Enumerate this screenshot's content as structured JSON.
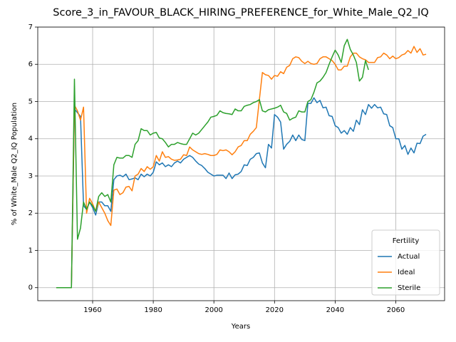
{
  "chart_data": {
    "type": "line",
    "title": "Score_3_in_FAVOUR_BLACK_HIRING_PREFERENCE_for_White_Male_Q2_IQ",
    "xlabel": "Years",
    "ylabel": "% of White_Male Q2_IQ Population",
    "x": [
      1948,
      1949,
      1950,
      1951,
      1952,
      1953,
      1954,
      1955,
      1956,
      1957,
      1958,
      1959,
      1960,
      1961,
      1962,
      1963,
      1964,
      1965,
      1966,
      1967,
      1968,
      1969,
      1970,
      1971,
      1972,
      1973,
      1974,
      1975,
      1976,
      1977,
      1978,
      1979,
      1980,
      1981,
      1982,
      1983,
      1984,
      1985,
      1986,
      1987,
      1988,
      1989,
      1990,
      1991,
      1992,
      1993,
      1994,
      1995,
      1996,
      1997,
      1998,
      1999,
      2000,
      2001,
      2002,
      2003,
      2004,
      2005,
      2006,
      2007,
      2008,
      2009,
      2010,
      2011,
      2012,
      2013,
      2014,
      2015,
      2016,
      2017,
      2018,
      2019,
      2020,
      2021,
      2022,
      2023,
      2024,
      2025,
      2026,
      2027,
      2028,
      2029,
      2030,
      2031,
      2032,
      2033,
      2034,
      2035,
      2036,
      2037,
      2038,
      2039,
      2040,
      2041,
      2042,
      2043,
      2044,
      2045,
      2046,
      2047,
      2048,
      2049,
      2050,
      2051,
      2052,
      2053,
      2054,
      2055,
      2056,
      2057,
      2058,
      2059,
      2060,
      2061,
      2062,
      2063,
      2064,
      2065,
      2066,
      2067,
      2068,
      2069,
      2070
    ],
    "series": [
      {
        "name": "Actual",
        "color": "#1f77b4",
        "values": [
          0,
          0,
          0,
          0,
          0,
          0,
          4.8,
          4.7,
          4.6,
          2.2,
          2.1,
          2.3,
          2.15,
          1.95,
          2.3,
          2.3,
          2.2,
          2.2,
          2.05,
          2.9,
          3.0,
          3.02,
          2.98,
          3.05,
          2.9,
          2.92,
          2.95,
          2.9,
          3.05,
          2.98,
          3.05,
          3.0,
          3.1,
          3.38,
          3.3,
          3.35,
          3.25,
          3.3,
          3.25,
          3.35,
          3.4,
          3.35,
          3.45,
          3.5,
          3.55,
          3.5,
          3.4,
          3.32,
          3.28,
          3.2,
          3.1,
          3.05,
          3.0,
          3.02,
          3.02,
          3.02,
          2.93,
          3.08,
          2.93,
          3.03,
          3.05,
          3.12,
          3.3,
          3.28,
          3.45,
          3.5,
          3.6,
          3.62,
          3.35,
          3.22,
          3.85,
          3.75,
          4.65,
          4.58,
          4.45,
          3.72,
          3.85,
          3.93,
          4.1,
          3.95,
          4.1,
          3.98,
          3.95,
          4.95,
          4.95,
          5.1,
          4.97,
          5.03,
          4.83,
          4.85,
          4.62,
          4.6,
          4.35,
          4.3,
          4.15,
          4.22,
          4.12,
          4.3,
          4.2,
          4.5,
          4.38,
          4.78,
          4.65,
          4.92,
          4.82,
          4.92,
          4.83,
          4.85,
          4.67,
          4.65,
          4.35,
          4.3,
          4.0,
          4.0,
          3.72,
          3.82,
          3.58,
          3.75,
          3.62,
          3.88,
          3.87,
          4.07,
          4.12
        ]
      },
      {
        "name": "Ideal",
        "color": "#ff7f0e",
        "values": [
          0,
          0,
          0,
          0,
          0,
          0,
          4.9,
          4.75,
          4.5,
          4.85,
          2.0,
          2.4,
          2.25,
          2.05,
          2.3,
          2.15,
          2.0,
          1.8,
          1.67,
          2.62,
          2.65,
          2.5,
          2.55,
          2.7,
          2.72,
          2.6,
          3.0,
          3.05,
          3.2,
          3.12,
          3.25,
          3.18,
          3.25,
          3.55,
          3.4,
          3.65,
          3.5,
          3.52,
          3.45,
          3.42,
          3.43,
          3.45,
          3.57,
          3.55,
          3.78,
          3.7,
          3.65,
          3.6,
          3.58,
          3.6,
          3.58,
          3.55,
          3.55,
          3.58,
          3.7,
          3.68,
          3.7,
          3.65,
          3.57,
          3.65,
          3.78,
          3.82,
          3.95,
          3.95,
          4.12,
          4.2,
          4.3,
          5.05,
          5.78,
          5.72,
          5.7,
          5.6,
          5.7,
          5.68,
          5.8,
          5.75,
          5.92,
          5.97,
          6.15,
          6.2,
          6.18,
          6.08,
          6.02,
          6.08,
          6.02,
          6.0,
          6.02,
          6.15,
          6.2,
          6.2,
          6.15,
          6.1,
          6.0,
          5.85,
          5.85,
          5.95,
          5.95,
          6.2,
          6.3,
          6.3,
          6.2,
          6.15,
          6.12,
          6.05,
          6.05,
          6.05,
          6.18,
          6.2,
          6.3,
          6.25,
          6.15,
          6.22,
          6.15,
          6.18,
          6.25,
          6.28,
          6.37,
          6.3,
          6.48,
          6.32,
          6.42,
          6.25,
          6.27
        ]
      },
      {
        "name": "Sterile",
        "color": "#2ca02c",
        "values": [
          0,
          0,
          0,
          0,
          0,
          0,
          5.6,
          1.3,
          1.6,
          2.3,
          2.1,
          2.3,
          2.2,
          2.05,
          2.45,
          2.55,
          2.45,
          2.5,
          2.3,
          3.3,
          3.5,
          3.48,
          3.48,
          3.55,
          3.55,
          3.5,
          3.85,
          3.95,
          4.27,
          4.22,
          4.22,
          4.1,
          4.15,
          4.17,
          4.02,
          4.0,
          3.9,
          3.78,
          3.85,
          3.85,
          3.9,
          3.87,
          3.85,
          3.85,
          4.0,
          4.15,
          4.1,
          4.15,
          4.25,
          4.35,
          4.45,
          4.58,
          4.6,
          4.63,
          4.75,
          4.7,
          4.68,
          4.67,
          4.65,
          4.8,
          4.75,
          4.75,
          4.87,
          4.9,
          4.92,
          4.97,
          5.0,
          5.05,
          4.75,
          4.72,
          4.78,
          4.8,
          4.82,
          4.85,
          4.9,
          4.72,
          4.68,
          4.5,
          4.55,
          4.58,
          4.75,
          4.72,
          4.72,
          5.0,
          5.05,
          5.25,
          5.5,
          5.55,
          5.65,
          5.78,
          6.0,
          6.2,
          6.38,
          6.25,
          6.05,
          6.5,
          6.67,
          6.4,
          6.25,
          6.05,
          5.55,
          5.65,
          6.1,
          5.85,
          null,
          null,
          null,
          null,
          null,
          null,
          null,
          null,
          null,
          null,
          null,
          null,
          null,
          null,
          null,
          null,
          null,
          null,
          null
        ]
      }
    ],
    "xlim": [
      1941.9,
      2076.1
    ],
    "ylim": [
      -0.35,
      7
    ],
    "xticks": [
      1960,
      1980,
      2000,
      2020,
      2040,
      2060
    ],
    "yticks": [
      0,
      1,
      2,
      3,
      4,
      5,
      6,
      7
    ],
    "grid": true,
    "legend_title": "Fertility",
    "legend": "lower right"
  }
}
